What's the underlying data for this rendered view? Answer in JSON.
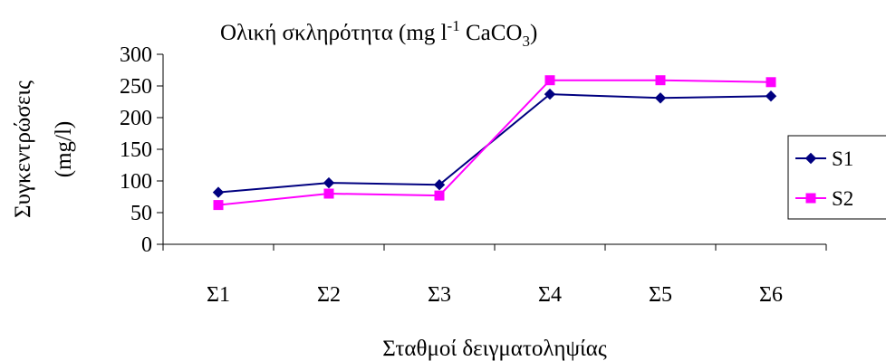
{
  "chart_data": {
    "type": "line",
    "title": {
      "text": "Ολική σκληρότητα (mg l",
      "superscript": "-1",
      "rest": " CaCO",
      "subscript": "3",
      "close": ")"
    },
    "xlabel": "Σταθμοί δειγματοληψίας",
    "ylabel": "Συγκεντρώσεις",
    "ylabel_unit": "(mg/l)",
    "categories": [
      "Σ1",
      "Σ2",
      "Σ3",
      "Σ4",
      "Σ5",
      "Σ6"
    ],
    "ylim": [
      0,
      300
    ],
    "yticks": [
      0,
      50,
      100,
      150,
      200,
      250,
      300
    ],
    "grid": false,
    "legend_position": "right",
    "series": [
      {
        "name": "S1",
        "color": "#000080",
        "marker": "diamond",
        "values": [
          82,
          97,
          94,
          237,
          231,
          234
        ]
      },
      {
        "name": "S2",
        "color": "#ff00ff",
        "marker": "square",
        "values": [
          62,
          80,
          77,
          259,
          259,
          256
        ]
      }
    ]
  }
}
